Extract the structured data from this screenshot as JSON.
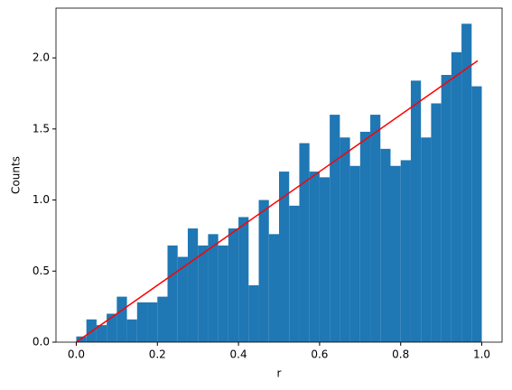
{
  "chart_data": {
    "type": "histogram",
    "xlabel": "r",
    "ylabel": "Counts",
    "bins": [
      0,
      0.025,
      0.05,
      0.075,
      0.1,
      0.125,
      0.15,
      0.175,
      0.2,
      0.225,
      0.25,
      0.275,
      0.3,
      0.325,
      0.35,
      0.375,
      0.4,
      0.425,
      0.45,
      0.475,
      0.5,
      0.525,
      0.55,
      0.575,
      0.6,
      0.625,
      0.65,
      0.675,
      0.7,
      0.725,
      0.75,
      0.775,
      0.8,
      0.825,
      0.85,
      0.875,
      0.9,
      0.925,
      0.95,
      0.975,
      1.0
    ],
    "values": [
      0.04,
      0.16,
      0.12,
      0.2,
      0.32,
      0.16,
      0.28,
      0.28,
      0.32,
      0.68,
      0.6,
      0.8,
      0.68,
      0.76,
      0.68,
      0.8,
      0.88,
      0.4,
      1.0,
      0.76,
      1.2,
      0.96,
      1.4,
      1.2,
      1.16,
      1.6,
      1.44,
      1.24,
      1.48,
      1.6,
      1.36,
      1.24,
      1.28,
      1.84,
      1.44,
      1.68,
      1.88,
      2.04,
      2.24,
      1.8
    ],
    "color": "#1f77b4",
    "line": {
      "x": [
        0,
        0.99
      ],
      "values": [
        0,
        1.98
      ],
      "color": "#ff0000"
    },
    "xlim": [
      -0.05,
      1.05
    ],
    "ylim": [
      0,
      2.35
    ],
    "xticks": [
      {
        "value": 0,
        "label": "0.0"
      },
      {
        "value": 0.2,
        "label": "0.2"
      },
      {
        "value": 0.4,
        "label": "0.4"
      },
      {
        "value": 0.6,
        "label": "0.6"
      },
      {
        "value": 0.8,
        "label": "0.8"
      },
      {
        "value": 1.0,
        "label": "1.0"
      }
    ],
    "yticks": [
      {
        "value": 0,
        "label": "0.0"
      },
      {
        "value": 0.5,
        "label": "0.5"
      },
      {
        "value": 1.0,
        "label": "1.0"
      },
      {
        "value": 1.5,
        "label": "1.5"
      },
      {
        "value": 2.0,
        "label": "2.0"
      }
    ]
  }
}
